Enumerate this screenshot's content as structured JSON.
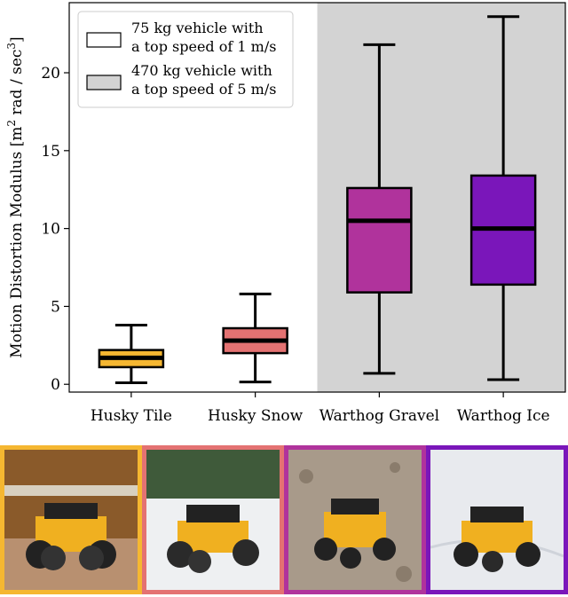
{
  "chart_data": {
    "type": "box",
    "categories": [
      "Husky Tile",
      "Husky Snow",
      "Warthog Gravel",
      "Warthog Ice"
    ],
    "ylabel_main": "Motion Distortion Modulus [m",
    "ylabel_sup1": "2",
    "ylabel_mid": " rad / sec",
    "ylabel_sup2": "3",
    "ylabel_end": "]",
    "ylim": [
      -0.5,
      24.5
    ],
    "yticks": [
      0,
      5,
      10,
      15,
      20
    ],
    "grid": false,
    "legend_placement": "top-left",
    "legend": [
      {
        "line1": "75 kg vehicle with",
        "line2": "a top speed of 1 m/s",
        "swatch": "#ffffff"
      },
      {
        "line1": "470 kg vehicle with",
        "line2": "a top speed of 5 m/s",
        "swatch": "#d3d3d3"
      }
    ],
    "shaded_region_categories": [
      "Warthog Gravel",
      "Warthog Ice"
    ],
    "shade_color": "#d3d3d3",
    "boxes": [
      {
        "category": "Husky Tile",
        "whisker_low": 0.1,
        "q1": 1.1,
        "median": 1.7,
        "q3": 2.2,
        "whisker_high": 3.8,
        "color": "#f5b731"
      },
      {
        "category": "Husky Snow",
        "whisker_low": 0.15,
        "q1": 2.0,
        "median": 2.8,
        "q3": 3.6,
        "whisker_high": 5.8,
        "color": "#e47272"
      },
      {
        "category": "Warthog Gravel",
        "whisker_low": 0.7,
        "q1": 5.9,
        "median": 10.5,
        "q3": 12.6,
        "whisker_high": 21.8,
        "color": "#b0339c"
      },
      {
        "category": "Warthog Ice",
        "whisker_low": 0.3,
        "q1": 6.4,
        "median": 10.0,
        "q3": 13.4,
        "whisker_high": 23.6,
        "color": "#7a16ba"
      }
    ]
  },
  "photos": [
    {
      "name": "husky-tile-photo",
      "border": "#f5b731"
    },
    {
      "name": "husky-snow-photo",
      "border": "#e47272"
    },
    {
      "name": "warthog-gravel-photo",
      "border": "#b0339c"
    },
    {
      "name": "warthog-ice-photo",
      "border": "#7a16ba"
    }
  ]
}
